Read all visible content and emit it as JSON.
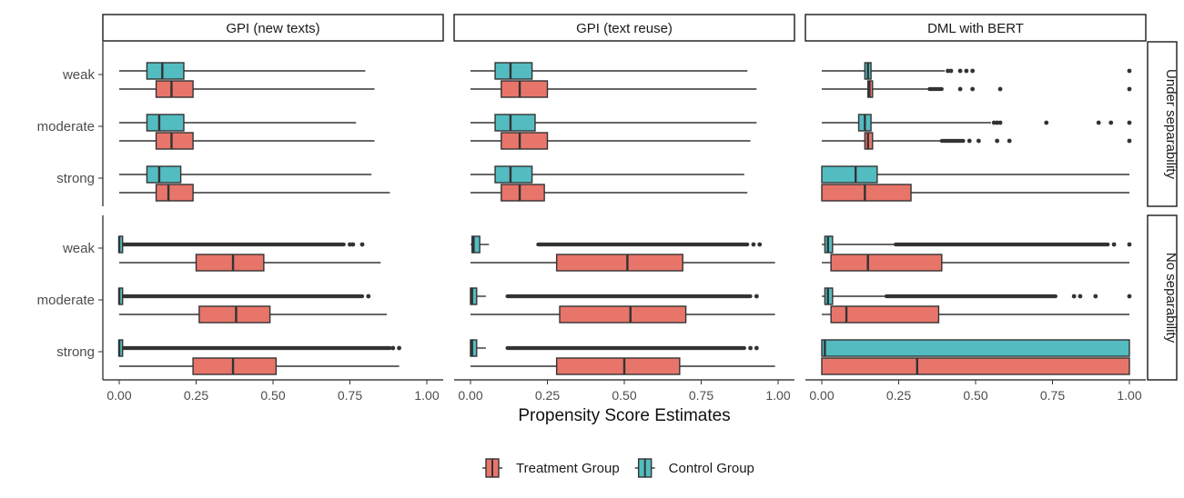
{
  "chart_data": {
    "type": "boxplot",
    "xlabel": "Propensity Score Estimates",
    "xlim": [
      0,
      1
    ],
    "x_ticks": [
      "0.00",
      "0.25",
      "0.50",
      "0.75",
      "1.00"
    ],
    "x_tick_values": [
      0,
      0.25,
      0.5,
      0.75,
      1.0
    ],
    "columns": [
      "GPI (new texts)",
      "GPI (text reuse)",
      "DML with BERT"
    ],
    "rows": [
      "Under separability",
      "No separability"
    ],
    "categories": [
      "weak",
      "moderate",
      "strong"
    ],
    "legend": {
      "position": "bottom",
      "entries": [
        {
          "name": "Treatment Group",
          "color": "#E8756A"
        },
        {
          "name": "Control Group",
          "color": "#53BCC1"
        }
      ]
    },
    "colors": {
      "treatment": "#E8756A",
      "control": "#53BCC1",
      "line": "#333333"
    },
    "panels": [
      [
        [
          {
            "control": {
              "whisker_low": 0.0,
              "q1": 0.09,
              "median": 0.14,
              "q3": 0.21,
              "whisker_high": 0.8,
              "outliers": []
            },
            "treatment": {
              "whisker_low": 0.0,
              "q1": 0.12,
              "median": 0.17,
              "q3": 0.24,
              "whisker_high": 0.83,
              "outliers": []
            }
          },
          {
            "control": {
              "whisker_low": 0.0,
              "q1": 0.09,
              "median": 0.13,
              "q3": 0.21,
              "whisker_high": 0.77,
              "outliers": []
            },
            "treatment": {
              "whisker_low": 0.0,
              "q1": 0.12,
              "median": 0.17,
              "q3": 0.24,
              "whisker_high": 0.83,
              "outliers": []
            }
          },
          {
            "control": {
              "whisker_low": 0.0,
              "q1": 0.09,
              "median": 0.13,
              "q3": 0.2,
              "whisker_high": 0.82,
              "outliers": []
            },
            "treatment": {
              "whisker_low": 0.0,
              "q1": 0.12,
              "median": 0.16,
              "q3": 0.24,
              "whisker_high": 0.88,
              "outliers": []
            }
          }
        ],
        [
          {
            "control": {
              "whisker_low": 0.0,
              "q1": 0.0,
              "median": 0.0,
              "q3": 0.01,
              "whisker_high": 0.01,
              "outliers_dense": [
                0.01,
                0.73
              ],
              "outliers": [
                0.75,
                0.76,
                0.79
              ]
            },
            "treatment": {
              "whisker_low": 0.0,
              "q1": 0.25,
              "median": 0.37,
              "q3": 0.47,
              "whisker_high": 0.85,
              "outliers": []
            }
          },
          {
            "control": {
              "whisker_low": 0.0,
              "q1": 0.0,
              "median": 0.0,
              "q3": 0.01,
              "whisker_high": 0.01,
              "outliers_dense": [
                0.01,
                0.79
              ],
              "outliers": [
                0.81
              ]
            },
            "treatment": {
              "whisker_low": 0.0,
              "q1": 0.26,
              "median": 0.38,
              "q3": 0.49,
              "whisker_high": 0.87,
              "outliers": []
            }
          },
          {
            "control": {
              "whisker_low": 0.0,
              "q1": 0.0,
              "median": 0.0,
              "q3": 0.01,
              "whisker_high": 0.01,
              "outliers_dense": [
                0.01,
                0.88
              ],
              "outliers": [
                0.89,
                0.91
              ]
            },
            "treatment": {
              "whisker_low": 0.0,
              "q1": 0.24,
              "median": 0.37,
              "q3": 0.51,
              "whisker_high": 0.91,
              "outliers": []
            }
          }
        ]
      ],
      [
        [
          {
            "control": {
              "whisker_low": 0.0,
              "q1": 0.08,
              "median": 0.13,
              "q3": 0.2,
              "whisker_high": 0.9,
              "outliers": []
            },
            "treatment": {
              "whisker_low": 0.0,
              "q1": 0.1,
              "median": 0.16,
              "q3": 0.25,
              "whisker_high": 0.93,
              "outliers": []
            }
          },
          {
            "control": {
              "whisker_low": 0.0,
              "q1": 0.08,
              "median": 0.13,
              "q3": 0.21,
              "whisker_high": 0.93,
              "outliers": []
            },
            "treatment": {
              "whisker_low": 0.0,
              "q1": 0.1,
              "median": 0.16,
              "q3": 0.25,
              "whisker_high": 0.91,
              "outliers": []
            }
          },
          {
            "control": {
              "whisker_low": 0.0,
              "q1": 0.08,
              "median": 0.13,
              "q3": 0.2,
              "whisker_high": 0.89,
              "outliers": []
            },
            "treatment": {
              "whisker_low": 0.0,
              "q1": 0.1,
              "median": 0.16,
              "q3": 0.24,
              "whisker_high": 0.9,
              "outliers": []
            }
          }
        ],
        [
          {
            "control": {
              "whisker_low": 0.0,
              "q1": 0.005,
              "median": 0.01,
              "q3": 0.03,
              "whisker_high": 0.06,
              "outliers_dense": [
                0.22,
                0.9
              ],
              "outliers": [
                0.92,
                0.94
              ]
            },
            "treatment": {
              "whisker_low": 0.0,
              "q1": 0.28,
              "median": 0.51,
              "q3": 0.69,
              "whisker_high": 0.99,
              "outliers": []
            }
          },
          {
            "control": {
              "whisker_low": 0.0,
              "q1": 0.0,
              "median": 0.005,
              "q3": 0.02,
              "whisker_high": 0.05,
              "outliers_dense": [
                0.12,
                0.91
              ],
              "outliers": [
                0.93
              ]
            },
            "treatment": {
              "whisker_low": 0.0,
              "q1": 0.29,
              "median": 0.52,
              "q3": 0.7,
              "whisker_high": 0.99,
              "outliers": []
            }
          },
          {
            "control": {
              "whisker_low": 0.0,
              "q1": 0.0,
              "median": 0.005,
              "q3": 0.02,
              "whisker_high": 0.05,
              "outliers_dense": [
                0.12,
                0.89
              ],
              "outliers": [
                0.91,
                0.93
              ]
            },
            "treatment": {
              "whisker_low": 0.0,
              "q1": 0.28,
              "median": 0.5,
              "q3": 0.68,
              "whisker_high": 0.99,
              "outliers": []
            }
          }
        ]
      ],
      [
        [
          {
            "control": {
              "whisker_low": 0.0,
              "q1": 0.14,
              "median": 0.15,
              "q3": 0.16,
              "whisker_high": 0.4,
              "outliers": [
                0.41,
                0.42,
                0.45,
                0.47,
                0.49,
                1.0
              ]
            },
            "treatment": {
              "whisker_low": 0.0,
              "q1": 0.15,
              "median": 0.155,
              "q3": 0.165,
              "whisker_high": 0.35,
              "outliers_dense": [
                0.35,
                0.39
              ],
              "outliers": [
                0.45,
                0.49,
                0.58,
                1.0
              ]
            }
          },
          {
            "control": {
              "whisker_low": 0.0,
              "q1": 0.12,
              "median": 0.14,
              "q3": 0.16,
              "whisker_high": 0.55,
              "outliers": [
                0.56,
                0.57,
                0.58,
                0.73,
                0.9,
                0.94,
                1.0
              ]
            },
            "treatment": {
              "whisker_low": 0.0,
              "q1": 0.14,
              "median": 0.15,
              "q3": 0.165,
              "whisker_high": 0.39,
              "outliers_dense": [
                0.39,
                0.46
              ],
              "outliers": [
                0.48,
                0.51,
                0.57,
                0.61,
                1.0
              ]
            }
          },
          {
            "control": {
              "whisker_low": 0.0,
              "q1": 0.0,
              "median": 0.11,
              "q3": 0.18,
              "whisker_high": 1.0,
              "outliers": []
            },
            "treatment": {
              "whisker_low": 0.0,
              "q1": 0.0,
              "median": 0.14,
              "q3": 0.29,
              "whisker_high": 1.0,
              "outliers": []
            }
          }
        ],
        [
          {
            "control": {
              "whisker_low": 0.0,
              "q1": 0.01,
              "median": 0.02,
              "q3": 0.035,
              "whisker_high": 0.24,
              "outliers_dense": [
                0.24,
                0.93
              ],
              "outliers": [
                0.95,
                1.0
              ]
            },
            "treatment": {
              "whisker_low": 0.0,
              "q1": 0.03,
              "median": 0.15,
              "q3": 0.39,
              "whisker_high": 1.0,
              "outliers": []
            }
          },
          {
            "control": {
              "whisker_low": 0.0,
              "q1": 0.01,
              "median": 0.02,
              "q3": 0.035,
              "whisker_high": 0.21,
              "outliers_dense": [
                0.21,
                0.76
              ],
              "outliers": [
                0.82,
                0.84,
                0.89,
                1.0
              ]
            },
            "treatment": {
              "whisker_low": 0.0,
              "q1": 0.03,
              "median": 0.08,
              "q3": 0.38,
              "whisker_high": 1.0,
              "outliers": []
            }
          },
          {
            "control": {
              "whisker_low": 0.0,
              "q1": 0.0,
              "median": 0.01,
              "q3": 1.0,
              "whisker_high": 1.0,
              "outliers": []
            },
            "treatment": {
              "whisker_low": 0.0,
              "q1": 0.0,
              "median": 0.31,
              "q3": 1.0,
              "whisker_high": 1.0,
              "outliers": []
            }
          }
        ]
      ]
    ]
  }
}
